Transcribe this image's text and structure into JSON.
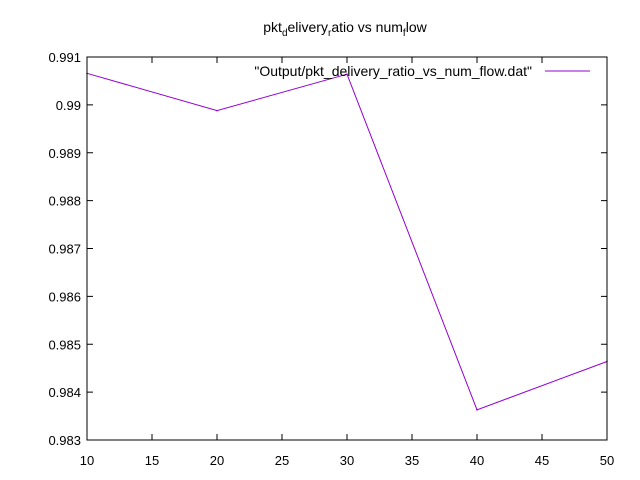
{
  "chart_data": {
    "type": "line",
    "title_parts": {
      "p1": "pkt",
      "s1": "d",
      "p2": "elivery",
      "s2": "r",
      "p3": "atio vs num",
      "s3": "f",
      "p4": "low"
    },
    "xlabel": "",
    "ylabel": "",
    "xlim": [
      10,
      50
    ],
    "ylim": [
      0.983,
      0.991
    ],
    "x_ticks": [
      10,
      15,
      20,
      25,
      30,
      35,
      40,
      45,
      50
    ],
    "x_tick_labels": [
      "10",
      "15",
      "20",
      "25",
      "30",
      "35",
      "40",
      "45",
      "50"
    ],
    "y_ticks": [
      0.983,
      0.984,
      0.985,
      0.986,
      0.987,
      0.988,
      0.989,
      0.99,
      0.991
    ],
    "y_tick_labels": [
      "0.983",
      "0.984",
      "0.985",
      "0.986",
      "0.987",
      "0.988",
      "0.989",
      "0.99",
      "0.991"
    ],
    "grid": false,
    "legend_position": "top-right",
    "series": [
      {
        "name": "\"Output/pkt_delivery_ratio_vs_num_flow.dat\"",
        "color": "#9400d3",
        "x": [
          10,
          20,
          30,
          40,
          50
        ],
        "values": [
          0.99066,
          0.98988,
          0.99064,
          0.98363,
          0.98464
        ]
      }
    ]
  }
}
